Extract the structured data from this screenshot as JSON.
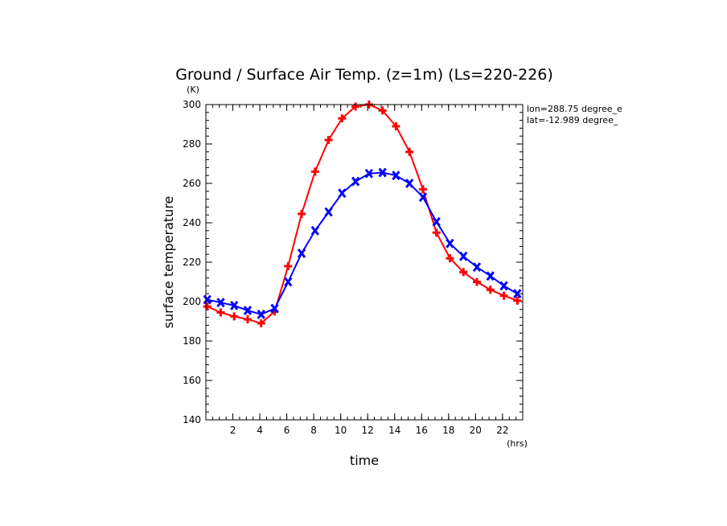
{
  "chart_data": {
    "type": "line",
    "title": "Ground / Surface Air Temp. (z=1m) (Ls=220-226)",
    "xlabel": "time",
    "ylabel": "surface temperature",
    "x_unit": "(hrs)",
    "y_unit": "(K)",
    "xlim": [
      0,
      23.5
    ],
    "ylim": [
      140,
      300
    ],
    "xticks": [
      2,
      4,
      6,
      8,
      10,
      12,
      14,
      16,
      18,
      20,
      22
    ],
    "yticks": [
      140,
      160,
      180,
      200,
      220,
      240,
      260,
      280,
      300
    ],
    "annotations": [
      "lon=288.75 degree_e",
      "lat=-12.989 degree_"
    ],
    "x": [
      0.1,
      1.1,
      2.1,
      3.1,
      4.1,
      5.1,
      6.1,
      7.1,
      8.1,
      9.1,
      10.1,
      11.1,
      12.1,
      13.1,
      14.1,
      15.1,
      16.1,
      17.1,
      18.1,
      19.1,
      20.1,
      21.1,
      22.1,
      23.1
    ],
    "series": [
      {
        "color": "#ff0000",
        "marker": "plus",
        "values": [
          197.5,
          194.5,
          192.5,
          191,
          189,
          195,
          218,
          244.5,
          266,
          282,
          293,
          299,
          300,
          297,
          289,
          276,
          257,
          235,
          222,
          215,
          210,
          206,
          203,
          200.5
        ]
      },
      {
        "color": "#0000ff",
        "marker": "x",
        "values": [
          201,
          199.5,
          198,
          195.5,
          193.5,
          196.5,
          210,
          224.5,
          236,
          245.5,
          255,
          261,
          265,
          265.5,
          264,
          260,
          253,
          240.5,
          229.5,
          223,
          217.5,
          213,
          208,
          204
        ]
      }
    ]
  }
}
